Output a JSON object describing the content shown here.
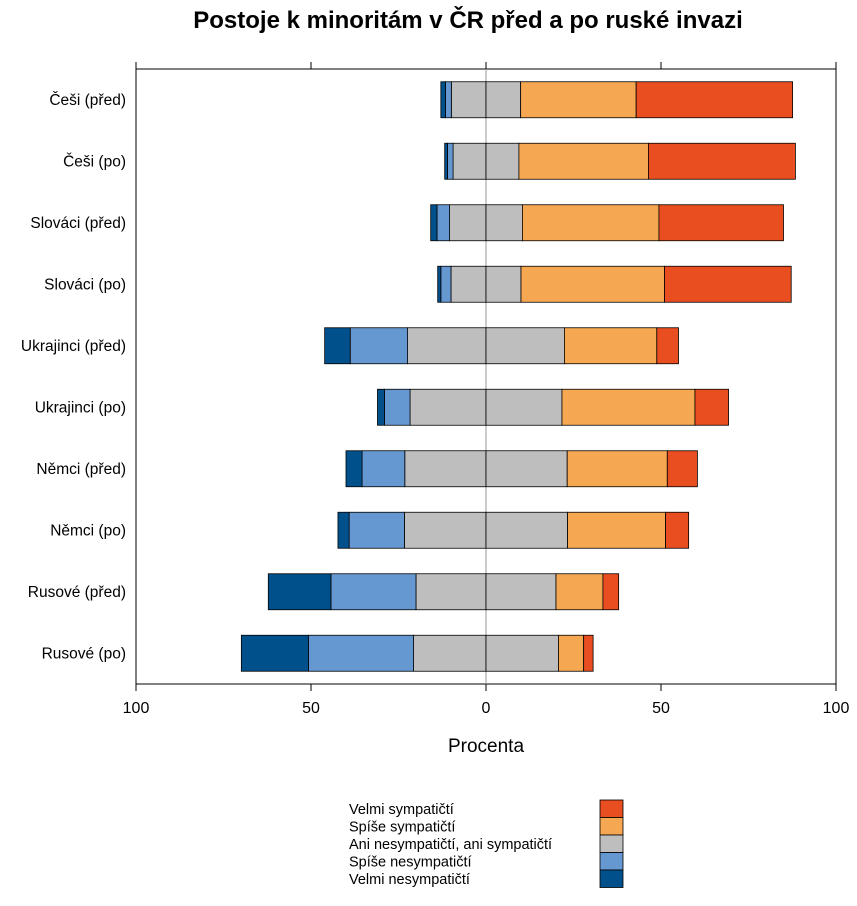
{
  "chart_data": {
    "type": "bar",
    "orientation": "horizontal",
    "stacking": "diverging",
    "title": "Postoje k minoritám v ČR před a po ruské invazi",
    "xlabel": "Procenta",
    "xlim": [
      -100,
      100
    ],
    "x_ticks": [
      -100,
      -50,
      0,
      50,
      100
    ],
    "x_tick_labels": [
      "100",
      "50",
      "0",
      "50",
      "100"
    ],
    "grid": false,
    "legend_position": "bottom",
    "categories": [
      "Češi (před)",
      "Češi (po)",
      "Slováci (před)",
      "Slováci (po)",
      "Ukrajinci (před)",
      "Ukrajinci (po)",
      "Němci (před)",
      "Němci (po)",
      "Rusové (před)",
      "Rusové (po)"
    ],
    "series": [
      {
        "name": "Velmi nesympatičtí",
        "color": "#00508C",
        "side": "negative",
        "values": [
          1.3,
          0.8,
          1.8,
          0.9,
          7.3,
          2.0,
          4.6,
          3.2,
          17.9,
          19.2
        ]
      },
      {
        "name": "Spíše nesympatičtí",
        "color": "#6597D0",
        "side": "negative",
        "values": [
          1.7,
          1.6,
          3.6,
          2.9,
          16.4,
          7.3,
          12.2,
          15.8,
          24.3,
          30.0
        ]
      },
      {
        "name": "Ani nesympatičtí, ani sympatičtí",
        "color": "#BEBEBE",
        "side": "center",
        "values": [
          19.8,
          18.8,
          20.8,
          20.0,
          44.8,
          43.4,
          46.4,
          46.6,
          40.0,
          41.4
        ]
      },
      {
        "name": "Spíše sympatičtí",
        "color": "#F6A752",
        "side": "positive",
        "values": [
          33.0,
          37.0,
          39.0,
          41.0,
          26.4,
          38.0,
          28.6,
          28.0,
          13.4,
          7.2
        ]
      },
      {
        "name": "Velmi sympatičtí",
        "color": "#E84E1F",
        "side": "positive",
        "values": [
          44.7,
          42.0,
          35.6,
          36.2,
          6.2,
          9.6,
          8.6,
          6.6,
          4.5,
          2.7
        ]
      }
    ],
    "legend_order": [
      "Velmi sympatičtí",
      "Spíše sympatičtí",
      "Ani nesympatičtí, ani sympatičtí",
      "Spíše nesympatičtí",
      "Velmi nesympatičtí"
    ]
  }
}
